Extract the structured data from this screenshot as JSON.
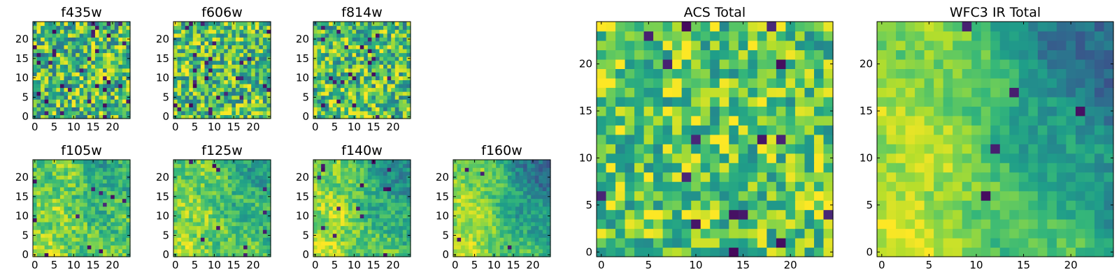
{
  "chart_data": [
    {
      "type": "heatmap",
      "title": "f435w",
      "xticks": [
        0,
        5,
        10,
        15,
        20
      ],
      "yticks": [
        0,
        5,
        10,
        15,
        20
      ],
      "xlim": [
        -0.5,
        24.5
      ],
      "ylim": [
        -0.5,
        24.5
      ],
      "grid_size": [
        25,
        25
      ],
      "colormap": "viridis",
      "pattern": {
        "kind": "noise",
        "seed": 11,
        "base": 0.68,
        "amp": 0.34,
        "dark_frac": 0.05
      }
    },
    {
      "type": "heatmap",
      "title": "f606w",
      "xticks": [
        0,
        5,
        10,
        15,
        20
      ],
      "yticks": [
        0,
        5,
        10,
        15,
        20
      ],
      "xlim": [
        -0.5,
        24.5
      ],
      "ylim": [
        -0.5,
        24.5
      ],
      "grid_size": [
        25,
        25
      ],
      "colormap": "viridis",
      "pattern": {
        "kind": "noise",
        "seed": 23,
        "base": 0.7,
        "amp": 0.32,
        "dark_frac": 0.04
      }
    },
    {
      "type": "heatmap",
      "title": "f814w",
      "xticks": [
        0,
        5,
        10,
        15,
        20
      ],
      "yticks": [
        0,
        5,
        10,
        15,
        20
      ],
      "xlim": [
        -0.5,
        24.5
      ],
      "ylim": [
        -0.5,
        24.5
      ],
      "grid_size": [
        25,
        25
      ],
      "colormap": "viridis",
      "pattern": {
        "kind": "noise",
        "seed": 37,
        "base": 0.7,
        "amp": 0.32,
        "dark_frac": 0.04
      }
    },
    {
      "type": "heatmap",
      "title": "f105w",
      "xticks": [
        0,
        5,
        10,
        15,
        20
      ],
      "yticks": [
        0,
        5,
        10,
        15,
        20
      ],
      "xlim": [
        -0.5,
        24.5
      ],
      "ylim": [
        -0.5,
        24.5
      ],
      "grid_size": [
        25,
        25
      ],
      "colormap": "viridis",
      "pattern": {
        "kind": "gradient",
        "seed": 41,
        "base": 0.82,
        "slope": 0.2,
        "amp": 0.16,
        "dark_frac": 0.02
      }
    },
    {
      "type": "heatmap",
      "title": "f125w",
      "xticks": [
        0,
        5,
        10,
        15,
        20
      ],
      "yticks": [
        0,
        5,
        10,
        15,
        20
      ],
      "xlim": [
        -0.5,
        24.5
      ],
      "ylim": [
        -0.5,
        24.5
      ],
      "grid_size": [
        25,
        25
      ],
      "colormap": "viridis",
      "pattern": {
        "kind": "gradient",
        "seed": 53,
        "base": 0.84,
        "slope": 0.28,
        "amp": 0.15,
        "dark_frac": 0.02
      }
    },
    {
      "type": "heatmap",
      "title": "f140w",
      "xticks": [
        0,
        5,
        10,
        15,
        20
      ],
      "yticks": [
        0,
        5,
        10,
        15,
        20
      ],
      "xlim": [
        -0.5,
        24.5
      ],
      "ylim": [
        -0.5,
        24.5
      ],
      "grid_size": [
        25,
        25
      ],
      "colormap": "viridis",
      "pattern": {
        "kind": "gradient",
        "seed": 67,
        "base": 0.88,
        "slope": 0.42,
        "amp": 0.14,
        "dark_frac": 0.02
      }
    },
    {
      "type": "heatmap",
      "title": "f160w",
      "xticks": [
        0,
        5,
        10,
        15,
        20
      ],
      "yticks": [
        0,
        5,
        10,
        15,
        20
      ],
      "xlim": [
        -0.5,
        24.5
      ],
      "ylim": [
        -0.5,
        24.5
      ],
      "grid_size": [
        25,
        25
      ],
      "colormap": "viridis",
      "pattern": {
        "kind": "gradient",
        "seed": 79,
        "base": 0.9,
        "slope": 0.58,
        "amp": 0.12,
        "dark_frac": 0.01
      }
    },
    {
      "type": "heatmap",
      "title": "ACS Total",
      "xticks": [
        0,
        5,
        10,
        15,
        20
      ],
      "yticks": [
        0,
        5,
        10,
        15,
        20
      ],
      "xlim": [
        -0.5,
        24.5
      ],
      "ylim": [
        -0.5,
        24.5
      ],
      "grid_size": [
        25,
        25
      ],
      "colormap": "viridis",
      "pattern": {
        "kind": "noise",
        "seed": 97,
        "base": 0.74,
        "amp": 0.28,
        "dark_frac": 0.03
      }
    },
    {
      "type": "heatmap",
      "title": "WFC3 IR Total",
      "xticks": [
        0,
        5,
        10,
        15,
        20
      ],
      "yticks": [
        0,
        5,
        10,
        15,
        20
      ],
      "xlim": [
        -0.5,
        24.5
      ],
      "ylim": [
        -0.5,
        24.5
      ],
      "grid_size": [
        25,
        25
      ],
      "colormap": "viridis",
      "pattern": {
        "kind": "gradient",
        "seed": 101,
        "base": 0.92,
        "slope": 0.62,
        "amp": 0.1,
        "dark_frac": 0.01
      }
    }
  ]
}
